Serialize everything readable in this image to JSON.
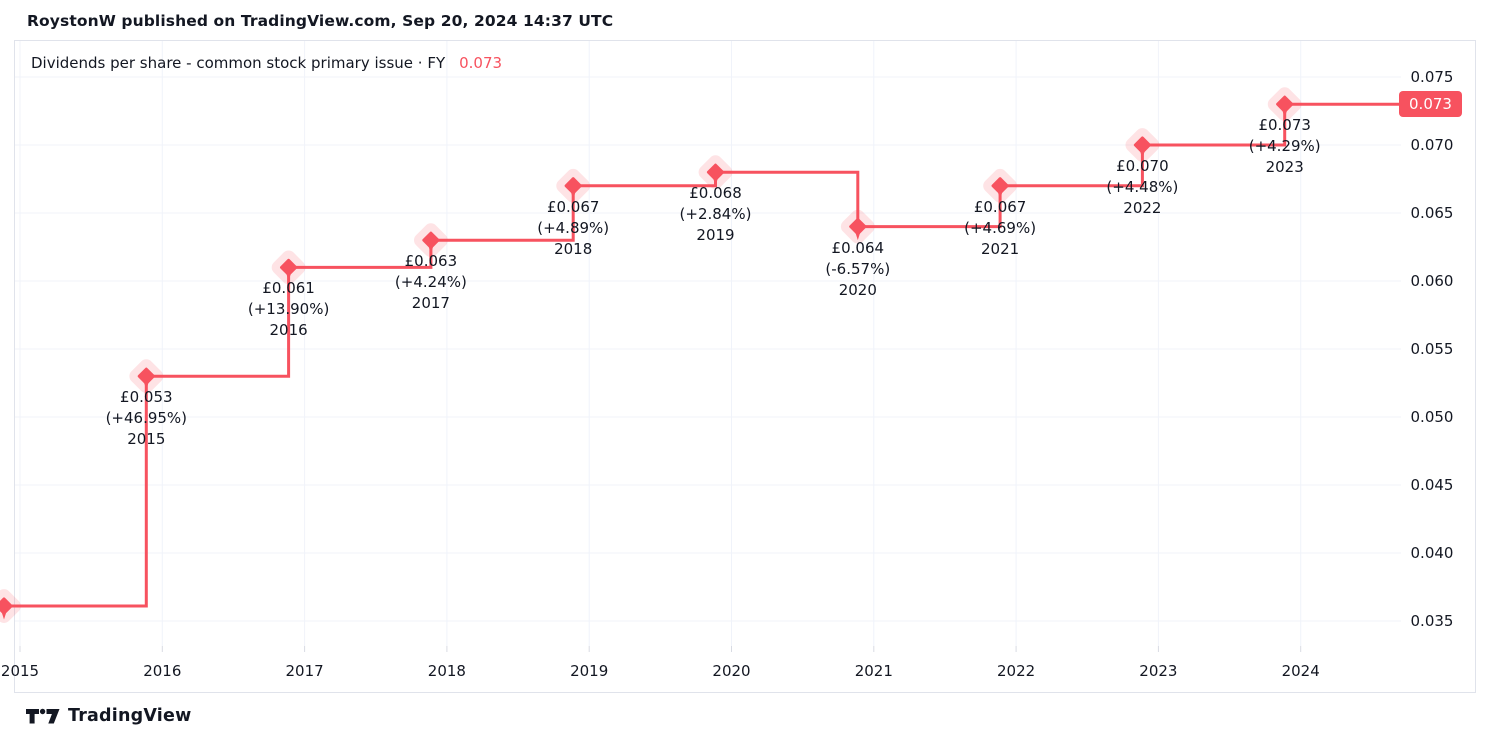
{
  "header": {
    "attribution": "RoystonW published on TradingView.com, Sep 20, 2024 14:37 UTC"
  },
  "legend": {
    "title": "Dividends per share - common stock primary issue · FY",
    "value": "0.073"
  },
  "watermark": {
    "label": "TradingView"
  },
  "colors": {
    "accent_red": "#F7525F",
    "text_dark": "#131722",
    "grid": "#F0F3FA",
    "border": "#E0E3EB",
    "tick": "#D8DBE3",
    "price_tag_text": "#FFFFFF",
    "halo_opacity": 0.16
  },
  "chart_data": {
    "type": "line",
    "step": true,
    "title": "Dividends per share - common stock primary issue · FY",
    "currency": "GBP",
    "last_price_label": "0.073",
    "legend_position": "top-left",
    "grid": true,
    "y_axis": {
      "side": "right",
      "min": 0.0325,
      "max": 0.0765,
      "ticks": [
        0.075,
        0.07,
        0.065,
        0.06,
        0.055,
        0.05,
        0.045,
        0.04,
        0.035
      ],
      "tick_labels": [
        "0.075",
        "0.070",
        "0.065",
        "0.060",
        "0.055",
        "0.050",
        "0.045",
        "0.040",
        "0.035"
      ]
    },
    "x_axis": {
      "ticks": [
        2015,
        2016,
        2017,
        2018,
        2019,
        2020,
        2021,
        2022,
        2023,
        2024
      ],
      "tick_labels": [
        "2015",
        "2016",
        "2017",
        "2018",
        "2019",
        "2020",
        "2021",
        "2022",
        "2023",
        "2024"
      ]
    },
    "points": [
      {
        "fiscal_year": 2014,
        "value": 0.0361,
        "partial_left_edge": true
      },
      {
        "fiscal_year": 2015,
        "value": 0.053,
        "value_label": "£0.053",
        "change_label": "(+46.95%)",
        "year_label": "2015"
      },
      {
        "fiscal_year": 2016,
        "value": 0.061,
        "value_label": "£0.061",
        "change_label": "(+13.90%)",
        "year_label": "2016"
      },
      {
        "fiscal_year": 2017,
        "value": 0.063,
        "value_label": "£0.063",
        "change_label": "(+4.24%)",
        "year_label": "2017"
      },
      {
        "fiscal_year": 2018,
        "value": 0.067,
        "value_label": "£0.067",
        "change_label": "(+4.89%)",
        "year_label": "2018"
      },
      {
        "fiscal_year": 2019,
        "value": 0.068,
        "value_label": "£0.068",
        "change_label": "(+2.84%)",
        "year_label": "2019"
      },
      {
        "fiscal_year": 2020,
        "value": 0.064,
        "value_label": "£0.064",
        "change_label": "(-6.57%)",
        "year_label": "2020"
      },
      {
        "fiscal_year": 2021,
        "value": 0.067,
        "value_label": "£0.067",
        "change_label": "(+4.69%)",
        "year_label": "2021"
      },
      {
        "fiscal_year": 2022,
        "value": 0.07,
        "value_label": "£0.070",
        "change_label": "(+4.48%)",
        "year_label": "2022"
      },
      {
        "fiscal_year": 2023,
        "value": 0.073,
        "value_label": "£0.073",
        "change_label": "(+4.29%)",
        "year_label": "2023"
      }
    ]
  }
}
